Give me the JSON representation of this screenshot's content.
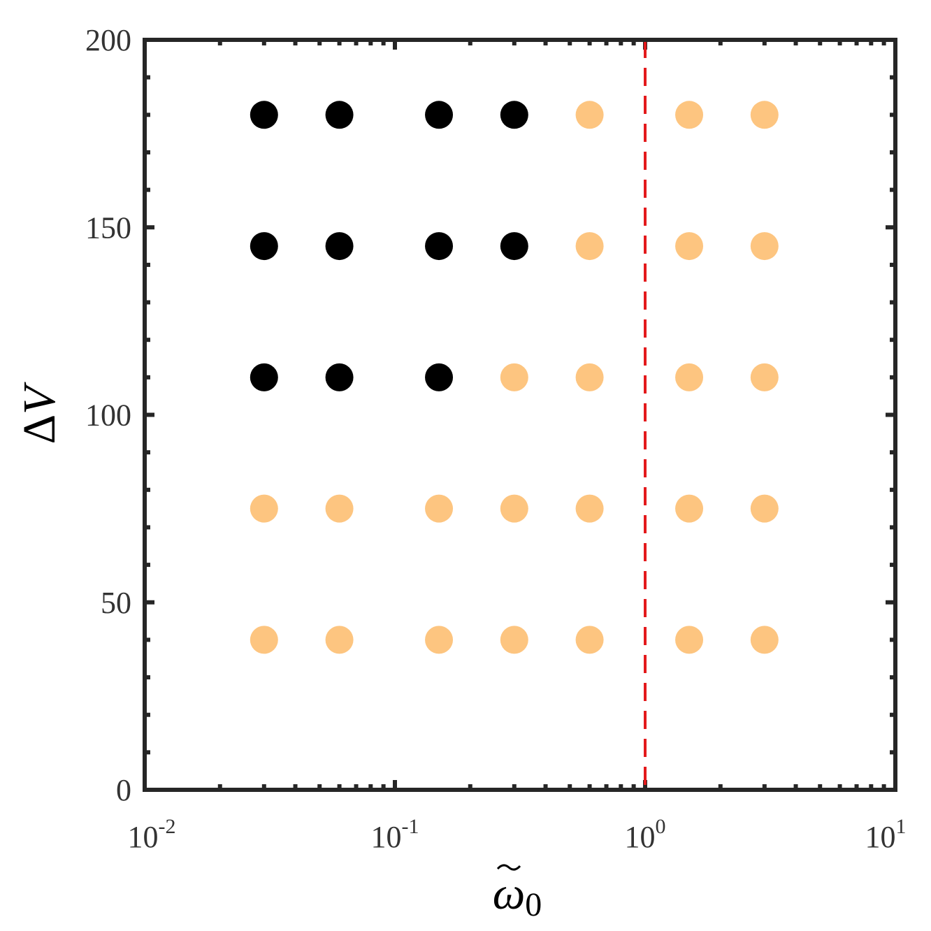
{
  "chart_data": {
    "type": "scatter",
    "title": "",
    "xlabel": "ω̃0",
    "xlabel_parts": {
      "symbol": "ω",
      "subscript": "0"
    },
    "ylabel": "ΔV",
    "x_scale": "log",
    "xlim": [
      0.01,
      10
    ],
    "ylim": [
      0,
      200
    ],
    "x_ticks": [
      {
        "value": 0.01,
        "base": "10",
        "exp": "-2"
      },
      {
        "value": 0.1,
        "base": "10",
        "exp": "-1"
      },
      {
        "value": 1,
        "base": "10",
        "exp": "0"
      },
      {
        "value": 10,
        "base": "10",
        "exp": "1"
      }
    ],
    "y_ticks": [
      {
        "value": 0,
        "label": "0"
      },
      {
        "value": 50,
        "label": "50"
      },
      {
        "value": 100,
        "label": "100"
      },
      {
        "value": 150,
        "label": "150"
      },
      {
        "value": 200,
        "label": "200"
      }
    ],
    "grid": false,
    "legend": "none",
    "reference_line": {
      "orientation": "vertical",
      "x": 1,
      "style": "dashed",
      "color": "#e31a1c"
    },
    "series": [
      {
        "color": "#000000",
        "points": [
          [
            0.03,
            180
          ],
          [
            0.06,
            180
          ],
          [
            0.15,
            180
          ],
          [
            0.3,
            180
          ],
          [
            0.03,
            145
          ],
          [
            0.06,
            145
          ],
          [
            0.15,
            145
          ],
          [
            0.3,
            145
          ],
          [
            0.03,
            110
          ],
          [
            0.06,
            110
          ],
          [
            0.15,
            110
          ]
        ]
      },
      {
        "color": "#fdc580",
        "points": [
          [
            0.6,
            180
          ],
          [
            1.5,
            180
          ],
          [
            3,
            180
          ],
          [
            0.6,
            145
          ],
          [
            1.5,
            145
          ],
          [
            3,
            145
          ],
          [
            0.3,
            110
          ],
          [
            0.6,
            110
          ],
          [
            1.5,
            110
          ],
          [
            3,
            110
          ],
          [
            0.03,
            75
          ],
          [
            0.06,
            75
          ],
          [
            0.15,
            75
          ],
          [
            0.3,
            75
          ],
          [
            0.6,
            75
          ],
          [
            1.5,
            75
          ],
          [
            3,
            75
          ],
          [
            0.03,
            40
          ],
          [
            0.06,
            40
          ],
          [
            0.15,
            40
          ],
          [
            0.3,
            40
          ],
          [
            0.6,
            40
          ],
          [
            1.5,
            40
          ],
          [
            3,
            40
          ]
        ]
      }
    ]
  }
}
